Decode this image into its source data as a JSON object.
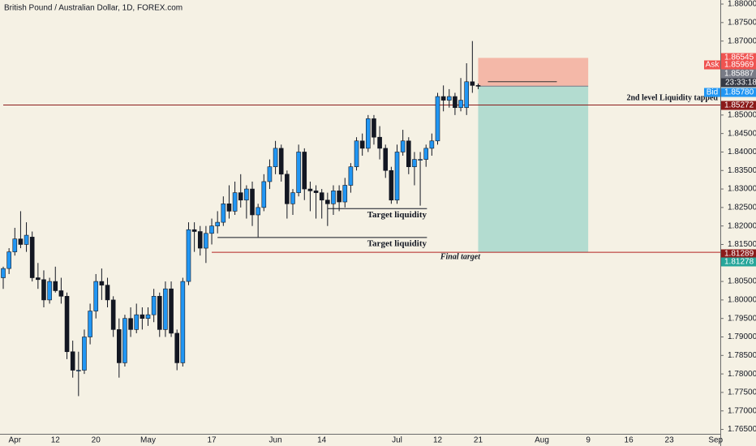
{
  "chart_data": {
    "type": "candlestick",
    "title": "British Pound / Australian Dollar, 1D, FOREX.com",
    "up_color": "#2196f3",
    "down_color": "#131722",
    "wick_color": "#131722",
    "categories": [
      null,
      null,
      "Apr",
      null,
      null,
      null,
      null,
      null,
      null,
      "12",
      null,
      null,
      null,
      null,
      null,
      null,
      "20",
      null,
      null,
      null,
      null,
      null,
      null,
      null,
      null,
      "May",
      null,
      null,
      null,
      null,
      null,
      null,
      null,
      null,
      null,
      null,
      "17",
      null,
      null,
      null,
      null,
      null,
      null,
      null,
      null,
      null,
      null,
      "Jun",
      null,
      null,
      null,
      null,
      null,
      null,
      null,
      "14",
      null,
      null,
      null,
      null,
      null,
      null,
      null,
      null,
      null,
      null,
      null,
      null,
      "Jul",
      null,
      null,
      null,
      null,
      null,
      null,
      "12",
      null,
      null,
      null,
      null,
      null,
      null,
      "21",
      null,
      null,
      null,
      null,
      null,
      null,
      null,
      null,
      null,
      null,
      "Aug",
      null,
      null,
      null,
      null,
      null,
      null,
      null,
      "9",
      null,
      null,
      null,
      null,
      null,
      null,
      "16",
      null,
      null,
      null,
      null,
      null,
      null,
      "23",
      null,
      null,
      null,
      null,
      null,
      null,
      null,
      "Sep"
    ],
    "open": [
      1.806,
      1.8085,
      1.813,
      1.8165,
      1.815,
      1.817,
      1.806,
      1.8055,
      1.8,
      1.805,
      1.8025,
      1.801,
      1.786,
      1.781,
      1.781,
      1.79,
      1.797,
      1.805,
      1.804,
      1.8,
      1.792,
      1.783,
      1.795,
      1.792,
      1.796,
      1.795,
      1.796,
      1.801,
      1.792,
      1.803,
      1.791,
      1.783,
      1.805,
      1.819,
      1.8185,
      1.814,
      1.818,
      1.82,
      1.821,
      1.826,
      1.824,
      1.829,
      1.827,
      1.83,
      1.823,
      1.825,
      1.832,
      1.836,
      1.841,
      1.834,
      1.826,
      1.829,
      1.84,
      1.83,
      1.8295,
      1.829,
      1.827,
      1.826,
      1.8295,
      1.8265,
      1.831,
      1.836,
      1.843,
      1.841,
      1.849,
      1.844,
      1.841,
      1.835,
      1.827,
      1.84,
      1.843,
      1.836,
      1.838,
      1.838,
      1.841,
      1.843,
      1.855,
      1.854,
      1.855,
      1.852,
      1.852,
      1.859,
      1.858,
      null,
      null,
      null,
      null,
      null,
      null,
      null,
      null,
      null,
      null,
      null,
      null,
      null,
      null,
      null,
      null,
      null,
      null,
      null,
      null,
      null,
      null,
      null,
      null,
      null,
      null,
      null,
      null,
      null,
      null,
      null,
      null,
      null,
      null,
      null,
      null,
      null,
      null,
      null,
      null,
      null
    ],
    "high": [
      1.809,
      1.814,
      1.8195,
      1.824,
      1.821,
      1.8185,
      1.81,
      1.808,
      1.806,
      1.809,
      1.806,
      1.802,
      1.789,
      1.786,
      1.792,
      1.799,
      1.807,
      1.8085,
      1.806,
      1.801,
      1.795,
      1.796,
      1.798,
      1.799,
      1.798,
      1.798,
      1.803,
      1.802,
      1.805,
      1.805,
      1.792,
      1.806,
      1.821,
      1.821,
      1.82,
      1.82,
      1.822,
      1.824,
      1.828,
      1.831,
      1.832,
      1.834,
      1.831,
      1.832,
      1.826,
      1.834,
      1.838,
      1.843,
      1.842,
      1.835,
      1.83,
      1.842,
      1.841,
      1.832,
      1.831,
      1.83,
      1.829,
      1.831,
      1.831,
      1.833,
      1.837,
      1.844,
      1.845,
      1.85,
      1.85,
      1.847,
      1.842,
      1.836,
      1.842,
      1.846,
      1.844,
      1.84,
      1.84,
      1.842,
      1.845,
      1.856,
      1.858,
      1.857,
      1.856,
      1.86,
      1.864,
      1.87,
      1.8585,
      null,
      null,
      null,
      null,
      null,
      null,
      null,
      null,
      null,
      null,
      null,
      null,
      null,
      null,
      null,
      null,
      null,
      null,
      null,
      null,
      null,
      null,
      null,
      null,
      null,
      null,
      null,
      null,
      null,
      null,
      null,
      null,
      null,
      null,
      null,
      null,
      null,
      null,
      null,
      null,
      null
    ],
    "low": [
      1.803,
      1.807,
      1.812,
      1.814,
      1.813,
      1.805,
      1.803,
      1.798,
      1.799,
      1.802,
      1.799,
      1.784,
      1.779,
      1.774,
      1.78,
      1.788,
      1.795,
      1.8,
      1.798,
      1.79,
      1.779,
      1.782,
      1.79,
      1.791,
      1.792,
      1.793,
      1.794,
      1.79,
      1.79,
      1.79,
      1.781,
      1.782,
      1.804,
      1.813,
      1.812,
      1.81,
      1.815,
      1.818,
      1.82,
      1.822,
      1.823,
      1.825,
      1.822,
      1.82,
      1.817,
      1.824,
      1.83,
      1.834,
      1.832,
      1.822,
      1.823,
      1.828,
      1.827,
      1.824,
      1.822,
      1.822,
      1.82,
      1.823,
      1.824,
      1.825,
      1.829,
      1.835,
      1.839,
      1.84,
      1.842,
      1.838,
      1.833,
      1.826,
      1.826,
      1.839,
      1.834,
      1.831,
      1.8255,
      1.836,
      1.839,
      1.842,
      1.851,
      1.852,
      1.85,
      1.851,
      1.85,
      1.856,
      1.857,
      null,
      null,
      null,
      null,
      null,
      null,
      null,
      null,
      null,
      null,
      null,
      null,
      null,
      null,
      null,
      null,
      null,
      null,
      null,
      null,
      null,
      null,
      null,
      null,
      null,
      null,
      null,
      null,
      null,
      null,
      null,
      null,
      null,
      null,
      null,
      null,
      null,
      null,
      null,
      null,
      null
    ],
    "close": [
      1.8085,
      1.813,
      1.8165,
      1.815,
      1.8175,
      1.806,
      1.8055,
      1.8,
      1.805,
      1.8025,
      1.801,
      1.786,
      1.781,
      1.781,
      1.79,
      1.797,
      1.805,
      1.804,
      1.8,
      1.792,
      1.783,
      1.795,
      1.792,
      1.796,
      1.795,
      1.796,
      1.801,
      1.792,
      1.803,
      1.791,
      1.783,
      1.805,
      1.819,
      1.8185,
      1.814,
      1.818,
      1.82,
      1.821,
      1.826,
      1.824,
      1.829,
      1.827,
      1.83,
      1.823,
      1.825,
      1.832,
      1.836,
      1.841,
      1.834,
      1.826,
      1.829,
      1.84,
      1.83,
      1.8295,
      1.829,
      1.827,
      1.826,
      1.8295,
      1.8265,
      1.831,
      1.836,
      1.843,
      1.841,
      1.849,
      1.844,
      1.841,
      1.835,
      1.827,
      1.84,
      1.843,
      1.836,
      1.838,
      1.838,
      1.841,
      1.843,
      1.855,
      1.854,
      1.855,
      1.852,
      1.854,
      1.859,
      1.858,
      1.8578,
      null,
      null,
      null,
      null,
      null,
      null,
      null,
      null,
      null,
      null,
      null,
      null,
      null,
      null,
      null,
      null,
      null,
      null,
      null,
      null,
      null,
      null,
      null,
      null,
      null,
      null,
      null,
      null,
      null,
      null,
      null,
      null,
      null,
      null,
      null,
      null,
      null,
      null,
      null,
      null,
      null
    ],
    "ylim": [
      1.7638,
      1.8811
    ],
    "yticks": [
      {
        "value": 1.88,
        "label": "1.88000"
      },
      {
        "value": 1.875,
        "label": "1.87500"
      },
      {
        "value": 1.87,
        "label": "1.87000"
      },
      {
        "value": 1.85,
        "label": "1.85000"
      },
      {
        "value": 1.845,
        "label": "1.84500"
      },
      {
        "value": 1.84,
        "label": "1.84000"
      },
      {
        "value": 1.835,
        "label": "1.83500"
      },
      {
        "value": 1.83,
        "label": "1.83000"
      },
      {
        "value": 1.825,
        "label": "1.82500"
      },
      {
        "value": 1.82,
        "label": "1.82000"
      },
      {
        "value": 1.815,
        "label": "1.81500"
      },
      {
        "value": 1.805,
        "label": "1.80500"
      },
      {
        "value": 1.8,
        "label": "1.80000"
      },
      {
        "value": 1.795,
        "label": "1.79500"
      },
      {
        "value": 1.79,
        "label": "1.79000"
      },
      {
        "value": 1.785,
        "label": "1.78500"
      },
      {
        "value": 1.78,
        "label": "1.78000"
      },
      {
        "value": 1.775,
        "label": "1.77500"
      },
      {
        "value": 1.77,
        "label": "1.77000"
      },
      {
        "value": 1.765,
        "label": "1.76500"
      }
    ],
    "grid": false,
    "levels": [
      {
        "value": 1.85272,
        "from": 0,
        "color": "#8b1a1a",
        "text": "2nd level Liquidity tapped"
      },
      {
        "value": 1.81289,
        "from": 36,
        "color": "#b22222",
        "text": "Final target"
      }
    ],
    "liquidity": [
      {
        "value": 1.8247,
        "from": 56,
        "to": 74,
        "text": "Target liquidity"
      },
      {
        "value": 1.8169,
        "from": 37,
        "to": 74,
        "text": "Target liquidity"
      }
    ],
    "position": {
      "from": 82,
      "to": 101,
      "stop": 1.86545,
      "entry": 1.8578,
      "target": 1.81289,
      "marker": 1.859,
      "stop_color": "#f4b8a8",
      "target_color": "#b3dcd0"
    },
    "price_labels": [
      {
        "value": 1.86545,
        "label": "1.86545",
        "color": "#ef5350"
      },
      {
        "value": 1.85969,
        "label": "1.85969",
        "color": "#ef5350",
        "tag": "Ask"
      },
      {
        "value": 1.85887,
        "label": "1.85887",
        "color": "#787b86"
      },
      {
        "value": 1.8578,
        "label": "1.85780",
        "color": "#2196f3",
        "tag": "Bid"
      },
      {
        "value": 1.85272,
        "label": "1.85272",
        "color": "#8b1a1a"
      },
      {
        "value": 1.81289,
        "label": "1.81289",
        "color": "#8b1a1a"
      },
      {
        "value": 1.81278,
        "label": "1.81278",
        "color": "#26a69a"
      }
    ],
    "countdown": "23:33:18"
  }
}
